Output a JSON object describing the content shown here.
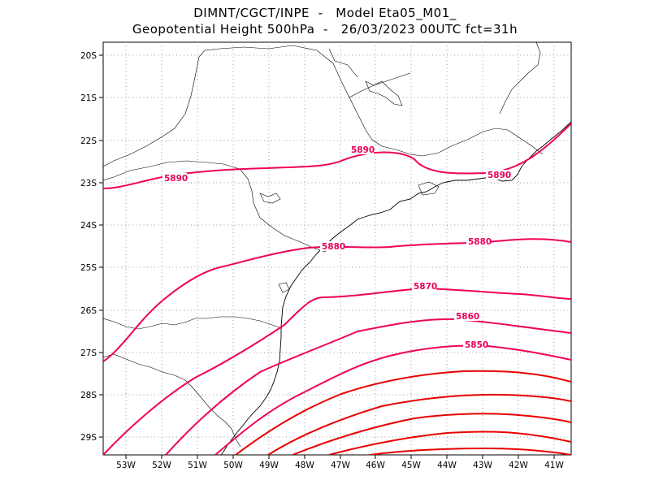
{
  "title": {
    "line1": "DIMNT/CGCT/INPE  -   Model Eta05_M01_",
    "line2": "Geopotential Height 500hPa  -   26/03/2023 00UTC fct=31h"
  },
  "lat_ticks": [
    "20S",
    "21S",
    "22S",
    "23S",
    "24S",
    "25S",
    "26S",
    "27S",
    "28S",
    "29S"
  ],
  "lon_ticks": [
    "53W",
    "52W",
    "51W",
    "50W",
    "49W",
    "48W",
    "47W",
    "46W",
    "45W",
    "44W",
    "43W",
    "42W",
    "41W"
  ],
  "contour_labels": [
    "5890",
    "5890",
    "5890",
    "5880",
    "5880",
    "5870",
    "5860",
    "5850"
  ],
  "colors": {
    "contour_pink": "#f0005a",
    "contour_red": "#e80000",
    "border": "#000000",
    "grid": "#999999"
  }
}
